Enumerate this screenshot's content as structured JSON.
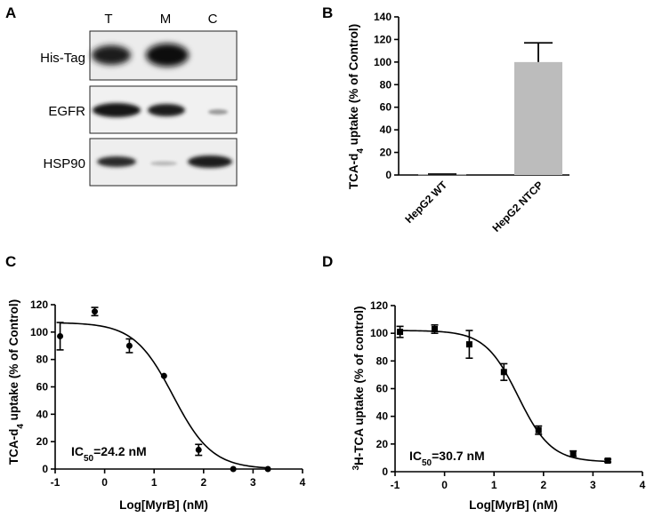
{
  "panels": {
    "a": "A",
    "b": "B",
    "c": "C",
    "d": "D"
  },
  "blot": {
    "lanes": [
      "T",
      "M",
      "C"
    ],
    "rows": [
      "His-Tag",
      "EGFR",
      "HSP90"
    ]
  },
  "chart_data": [
    {
      "panel": "B",
      "type": "bar",
      "categories": [
        "HepG2 WT",
        "HepG2 NTCP"
      ],
      "values": [
        0.5,
        100
      ],
      "errors": [
        0.3,
        17
      ],
      "ylabel_main": "TCA-d",
      "ylabel_sub": "4",
      "ylabel_tail": " uptake (% of Control)",
      "ylim": [
        0,
        140
      ],
      "yticks": [
        "0",
        "20",
        "40",
        "60",
        "80",
        "100",
        "120",
        "140"
      ],
      "bar_color": "#bcbcbc"
    },
    {
      "panel": "C",
      "type": "scatter",
      "x": [
        -0.9,
        -0.2,
        0.5,
        1.2,
        1.9,
        2.6,
        3.3
      ],
      "y": [
        97,
        115,
        90,
        68,
        14,
        0,
        0
      ],
      "errors": [
        10,
        3,
        5,
        0,
        4,
        0,
        0
      ],
      "fit": {
        "top": 107,
        "bottom": 0,
        "log_ic50": 1.384,
        "hill": 1.1
      },
      "xlabel": "Log[MyrB] (nM)",
      "ylabel_main": "TCA-d",
      "ylabel_sub": "4",
      "ylabel_tail": " uptake (% of Control)",
      "xlim": [
        -1,
        4
      ],
      "ylim": [
        0,
        120
      ],
      "xticks": [
        "-1",
        "0",
        "1",
        "2",
        "3",
        "4"
      ],
      "yticks": [
        "0",
        "20",
        "40",
        "60",
        "80",
        "100",
        "120"
      ],
      "ic50_prefix": "IC",
      "ic50_sub": "50",
      "ic50_value": "=24.2 nM",
      "marker": "circle"
    },
    {
      "panel": "D",
      "type": "scatter",
      "x": [
        -0.9,
        -0.2,
        0.5,
        1.2,
        1.9,
        2.6,
        3.3
      ],
      "y": [
        101,
        103,
        92,
        72,
        30,
        13,
        8
      ],
      "errors": [
        4,
        3,
        10,
        6,
        3,
        2,
        1
      ],
      "fit": {
        "top": 102,
        "bottom": 7,
        "log_ic50": 1.487,
        "hill": 1.3
      },
      "xlabel": "Log[MyrB] (nM)",
      "ylabel_sup": "3",
      "ylabel_main": "H-TCA uptake (% of control)",
      "xlim": [
        -1,
        4
      ],
      "ylim": [
        0,
        120
      ],
      "xticks": [
        "-1",
        "0",
        "1",
        "2",
        "3",
        "4"
      ],
      "yticks": [
        "0",
        "20",
        "40",
        "60",
        "80",
        "100",
        "120"
      ],
      "ic50_prefix": "IC",
      "ic50_sub": "50",
      "ic50_value": "=30.7 nM",
      "marker": "square"
    }
  ]
}
